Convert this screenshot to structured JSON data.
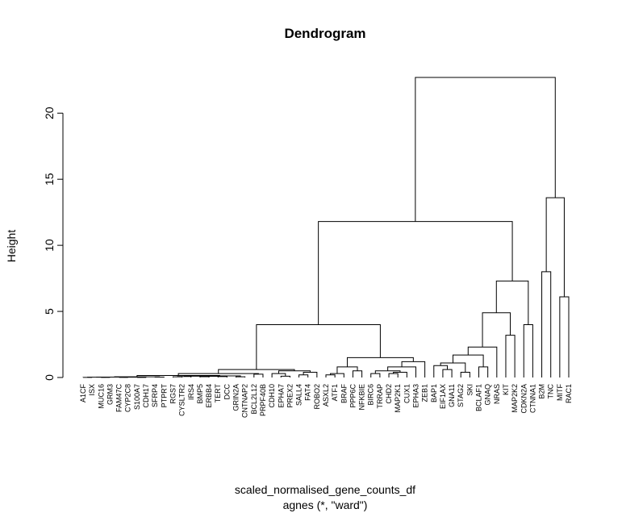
{
  "chart_data": {
    "type": "dendrogram",
    "title": "Dendrogram",
    "xlabel": "scaled_normalised_gene_counts_df",
    "subtitle": "agnes (*, \"ward\")",
    "ylabel": "Height",
    "ylim": [
      0,
      23.8
    ],
    "yticks": [
      0,
      5,
      10,
      15,
      20
    ],
    "color": "#000000",
    "tree": {
      "height": 22.7,
      "left": {
        "height": 11.8,
        "left": {
          "height": 4.0,
          "left": {
            "height": 0.6,
            "left": {
              "height": 0.3,
              "left": {
                "height": 0.15,
                "left": {
                  "height": 0.05,
                  "left": {
                    "height": 0.03,
                    "left": {
                      "height": 0.02,
                      "left": {
                        "height": 0.01,
                        "left": "A1CF",
                        "right": "ISX"
                      },
                      "right": {
                        "height": 0.01,
                        "left": "MUC16",
                        "right": "GRM3"
                      }
                    },
                    "right": {
                      "height": 0.02,
                      "left": {
                        "height": 0.01,
                        "left": "FAM47C",
                        "right": "CYP2C8"
                      },
                      "right": {
                        "height": 0.01,
                        "left": "S100A7",
                        "right": "CDH17"
                      }
                    }
                  },
                  "right": {
                    "height": 0.03,
                    "left": "SFRP4",
                    "right": "PTPRT"
                  }
                },
                "right": {
                  "height": 0.12,
                  "left": {
                    "height": 0.1,
                    "left": {
                      "height": 0.08,
                      "left": {
                        "height": 0.05,
                        "left": "RGS7",
                        "right": "CYSLTR2"
                      },
                      "right": "IRS4"
                    },
                    "right": {
                      "height": 0.09,
                      "left": {
                        "height": 0.06,
                        "left": "BMP5",
                        "right": "ERBB4"
                      },
                      "right": {
                        "height": 0.07,
                        "left": "TERT",
                        "right": "DCC"
                      }
                    }
                  },
                  "right": {
                    "height": 0.05,
                    "left": "GRIN2A",
                    "right": "CNTNAP2"
                  }
                }
              },
              "right": {
                "height": 0.25,
                "left": "BCL2L12",
                "right": "PRPF40B"
              }
            },
            "right": {
              "height": 0.5,
              "left": {
                "height": 0.3,
                "left": "CDH10",
                "right": {
                  "height": 0.1,
                  "left": "EPHA7",
                  "right": "PREX2"
                }
              },
              "right": {
                "height": 0.4,
                "left": {
                  "height": 0.2,
                  "left": "SALL4",
                  "right": "FAT4"
                },
                "right": "ROBO2"
              }
            }
          },
          "right": {
            "height": 1.5,
            "left": {
              "height": 0.8,
              "left": {
                "height": 0.3,
                "left": {
                  "height": 0.2,
                  "left": "ASXL2",
                  "right": "ATF1"
                },
                "right": "BRAF"
              },
              "right": {
                "height": 0.5,
                "left": "PPP6C",
                "right": "NFKBIE"
              }
            },
            "right": {
              "height": 1.2,
              "left": {
                "height": 0.8,
                "left": {
                  "height": 0.5,
                  "left": {
                    "height": 0.3,
                    "left": "BIRC6",
                    "right": "TRRAP"
                  },
                  "right": {
                    "height": 0.4,
                    "left": {
                      "height": 0.3,
                      "left": "CHD2",
                      "right": "MAP2K1"
                    },
                    "right": "CUX1"
                  }
                },
                "right": "EPHA3"
              },
              "right": "ZEB1"
            }
          }
        },
        "right": {
          "height": 7.3,
          "left": {
            "height": 4.9,
            "left": {
              "height": 2.3,
              "left": {
                "height": 1.7,
                "left": {
                  "height": 1.1,
                  "left": {
                    "height": 0.9,
                    "left": "BAP1",
                    "right": {
                      "height": 0.6,
                      "left": "EIF1AX",
                      "right": "GNA11"
                    }
                  },
                  "right": {
                    "height": 0.4,
                    "left": "STAG2",
                    "right": "SKI"
                  }
                },
                "right": {
                  "height": 0.8,
                  "left": "BCLAF1",
                  "right": "GNAQ"
                }
              },
              "right": "NRAS"
            },
            "right": {
              "height": 3.2,
              "left": "KIT",
              "right": "MAP2K2"
            }
          },
          "right": {
            "height": 4.0,
            "left": "CDKN2A",
            "right": "CTNNA1"
          }
        }
      },
      "right": {
        "height": 13.6,
        "left": {
          "height": 8.0,
          "left": "B2M",
          "right": "TNC"
        },
        "right": {
          "height": 6.1,
          "left": "MITF",
          "right": "RAC1"
        }
      }
    }
  }
}
